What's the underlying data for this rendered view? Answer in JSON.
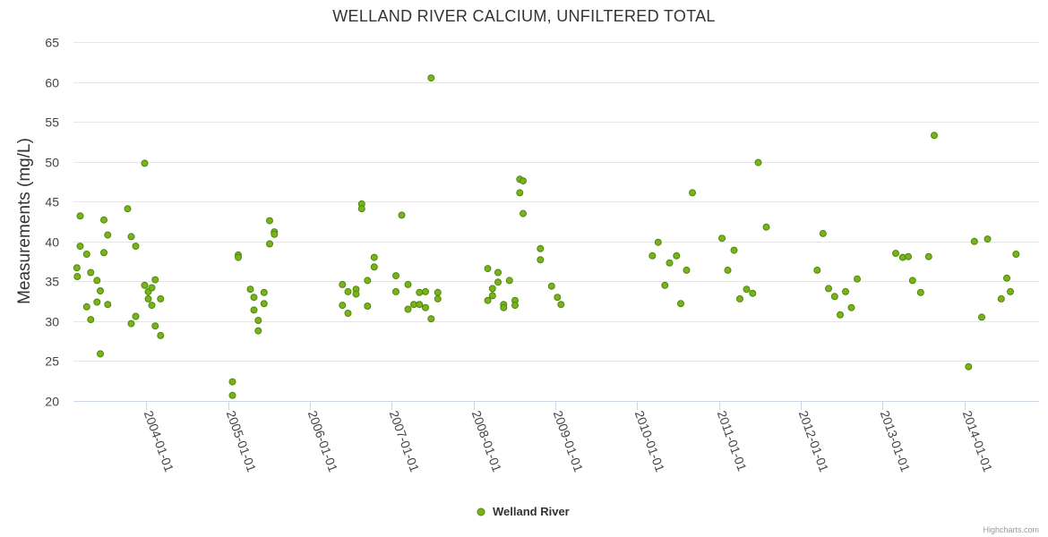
{
  "chart_data": {
    "type": "scatter",
    "title": "WELLAND RIVER CALCIUM, UNFILTERED TOTAL",
    "xlabel": "",
    "ylabel": "Measurements (mg/L)",
    "ylim": [
      20,
      65
    ],
    "yticks": [
      20,
      25,
      30,
      35,
      40,
      45,
      50,
      55,
      60,
      65
    ],
    "xlim": [
      "2003-02-10",
      "2014-12-01"
    ],
    "xticks": [
      "2004-01-01",
      "2005-01-01",
      "2006-01-01",
      "2007-01-01",
      "2008-01-01",
      "2009-01-01",
      "2010-01-01",
      "2011-01-01",
      "2012-01-01",
      "2013-01-01",
      "2014-01-01"
    ],
    "grid": true,
    "legend": "bottom-center",
    "series": [
      {
        "name": "Welland River",
        "color": "#7cb11e",
        "points": [
          [
            "2003-02-25",
            36.7
          ],
          [
            "2003-02-27",
            35.6
          ],
          [
            "2003-03-12",
            43.2
          ],
          [
            "2003-03-12",
            39.4
          ],
          [
            "2003-04-10",
            31.8
          ],
          [
            "2003-04-10",
            38.4
          ],
          [
            "2003-04-28",
            36.1
          ],
          [
            "2003-04-28",
            30.2
          ],
          [
            "2003-05-26",
            35.1
          ],
          [
            "2003-05-26",
            32.4
          ],
          [
            "2003-06-10",
            25.9
          ],
          [
            "2003-06-10",
            33.8
          ],
          [
            "2003-06-26",
            42.7
          ],
          [
            "2003-06-26",
            38.6
          ],
          [
            "2003-07-13",
            32.1
          ],
          [
            "2003-07-13",
            40.8
          ],
          [
            "2003-10-10",
            44.1
          ],
          [
            "2003-10-26",
            29.7
          ],
          [
            "2003-10-26",
            40.6
          ],
          [
            "2003-11-15",
            30.6
          ],
          [
            "2003-11-15",
            39.4
          ],
          [
            "2003-12-25",
            49.8
          ],
          [
            "2003-12-25",
            34.5
          ],
          [
            "2004-01-10",
            33.7
          ],
          [
            "2004-01-10",
            32.8
          ],
          [
            "2004-01-26",
            32.0
          ],
          [
            "2004-01-26",
            34.2
          ],
          [
            "2004-02-10",
            35.2
          ],
          [
            "2004-02-10",
            29.4
          ],
          [
            "2004-03-05",
            32.8
          ],
          [
            "2004-03-05",
            28.2
          ],
          [
            "2005-01-20",
            22.4
          ],
          [
            "2005-01-20",
            20.7
          ],
          [
            "2005-02-15",
            38.3
          ],
          [
            "2005-02-15",
            38.0
          ],
          [
            "2005-04-10",
            34.0
          ],
          [
            "2005-04-26",
            31.4
          ],
          [
            "2005-04-26",
            33.0
          ],
          [
            "2005-05-15",
            30.1
          ],
          [
            "2005-05-15",
            28.8
          ],
          [
            "2005-06-10",
            33.6
          ],
          [
            "2005-06-10",
            32.2
          ],
          [
            "2005-07-05",
            42.6
          ],
          [
            "2005-07-05",
            39.7
          ],
          [
            "2005-07-26",
            41.2
          ],
          [
            "2005-07-26",
            40.9
          ],
          [
            "2006-05-26",
            34.6
          ],
          [
            "2006-05-26",
            32.0
          ],
          [
            "2006-06-20",
            33.7
          ],
          [
            "2006-06-20",
            31.0
          ],
          [
            "2006-07-26",
            34.0
          ],
          [
            "2006-07-26",
            33.4
          ],
          [
            "2006-08-20",
            44.7
          ],
          [
            "2006-08-20",
            44.1
          ],
          [
            "2006-09-15",
            35.1
          ],
          [
            "2006-09-15",
            31.9
          ],
          [
            "2006-10-15",
            38.0
          ],
          [
            "2006-10-15",
            36.8
          ],
          [
            "2007-01-20",
            35.7
          ],
          [
            "2007-01-20",
            33.7
          ],
          [
            "2007-02-15",
            43.3
          ],
          [
            "2007-03-15",
            34.6
          ],
          [
            "2007-03-15",
            31.5
          ],
          [
            "2007-04-10",
            32.1
          ],
          [
            "2007-05-05",
            33.6
          ],
          [
            "2007-05-05",
            32.1
          ],
          [
            "2007-06-01",
            33.7
          ],
          [
            "2007-06-01",
            31.7
          ],
          [
            "2007-06-26",
            60.5
          ],
          [
            "2007-06-26",
            30.3
          ],
          [
            "2007-07-26",
            33.6
          ],
          [
            "2007-07-26",
            32.8
          ],
          [
            "2008-03-05",
            36.6
          ],
          [
            "2008-03-05",
            32.6
          ],
          [
            "2008-03-26",
            34.1
          ],
          [
            "2008-03-26",
            33.2
          ],
          [
            "2008-04-20",
            36.1
          ],
          [
            "2008-04-20",
            34.9
          ],
          [
            "2008-05-15",
            32.1
          ],
          [
            "2008-05-15",
            31.7
          ],
          [
            "2008-06-10",
            35.1
          ],
          [
            "2008-07-05",
            32.6
          ],
          [
            "2008-07-05",
            32.0
          ],
          [
            "2008-07-26",
            47.8
          ],
          [
            "2008-07-26",
            46.1
          ],
          [
            "2008-08-10",
            47.6
          ],
          [
            "2008-08-10",
            43.5
          ],
          [
            "2008-10-26",
            39.1
          ],
          [
            "2008-10-26",
            37.7
          ],
          [
            "2008-12-15",
            34.4
          ],
          [
            "2009-01-10",
            33.0
          ],
          [
            "2009-01-26",
            32.1
          ],
          [
            "2010-03-10",
            38.2
          ],
          [
            "2010-04-05",
            39.9
          ],
          [
            "2010-05-05",
            34.5
          ],
          [
            "2010-05-26",
            37.3
          ],
          [
            "2010-06-26",
            38.2
          ],
          [
            "2010-07-15",
            32.2
          ],
          [
            "2010-08-10",
            36.4
          ],
          [
            "2010-09-05",
            46.1
          ],
          [
            "2011-01-15",
            40.4
          ],
          [
            "2011-02-10",
            36.4
          ],
          [
            "2011-03-10",
            38.9
          ],
          [
            "2011-04-05",
            32.8
          ],
          [
            "2011-05-05",
            34.0
          ],
          [
            "2011-06-01",
            33.5
          ],
          [
            "2011-06-26",
            49.9
          ],
          [
            "2011-08-01",
            41.8
          ],
          [
            "2012-03-15",
            36.4
          ],
          [
            "2012-04-10",
            41.0
          ],
          [
            "2012-05-05",
            34.1
          ],
          [
            "2012-06-01",
            33.1
          ],
          [
            "2012-06-26",
            30.8
          ],
          [
            "2012-07-20",
            33.7
          ],
          [
            "2012-08-15",
            31.7
          ],
          [
            "2012-09-10",
            35.3
          ],
          [
            "2013-03-01",
            38.5
          ],
          [
            "2013-04-01",
            38.0
          ],
          [
            "2013-04-26",
            38.1
          ],
          [
            "2013-05-15",
            35.1
          ],
          [
            "2013-06-20",
            33.6
          ],
          [
            "2013-07-26",
            38.1
          ],
          [
            "2013-08-20",
            53.3
          ],
          [
            "2014-01-20",
            24.3
          ],
          [
            "2014-02-15",
            40.0
          ],
          [
            "2014-03-20",
            30.5
          ],
          [
            "2014-04-15",
            40.3
          ],
          [
            "2014-06-15",
            32.8
          ],
          [
            "2014-07-10",
            35.4
          ],
          [
            "2014-07-26",
            33.7
          ],
          [
            "2014-08-20",
            38.4
          ]
        ]
      }
    ]
  },
  "credits": "Highcharts.com"
}
